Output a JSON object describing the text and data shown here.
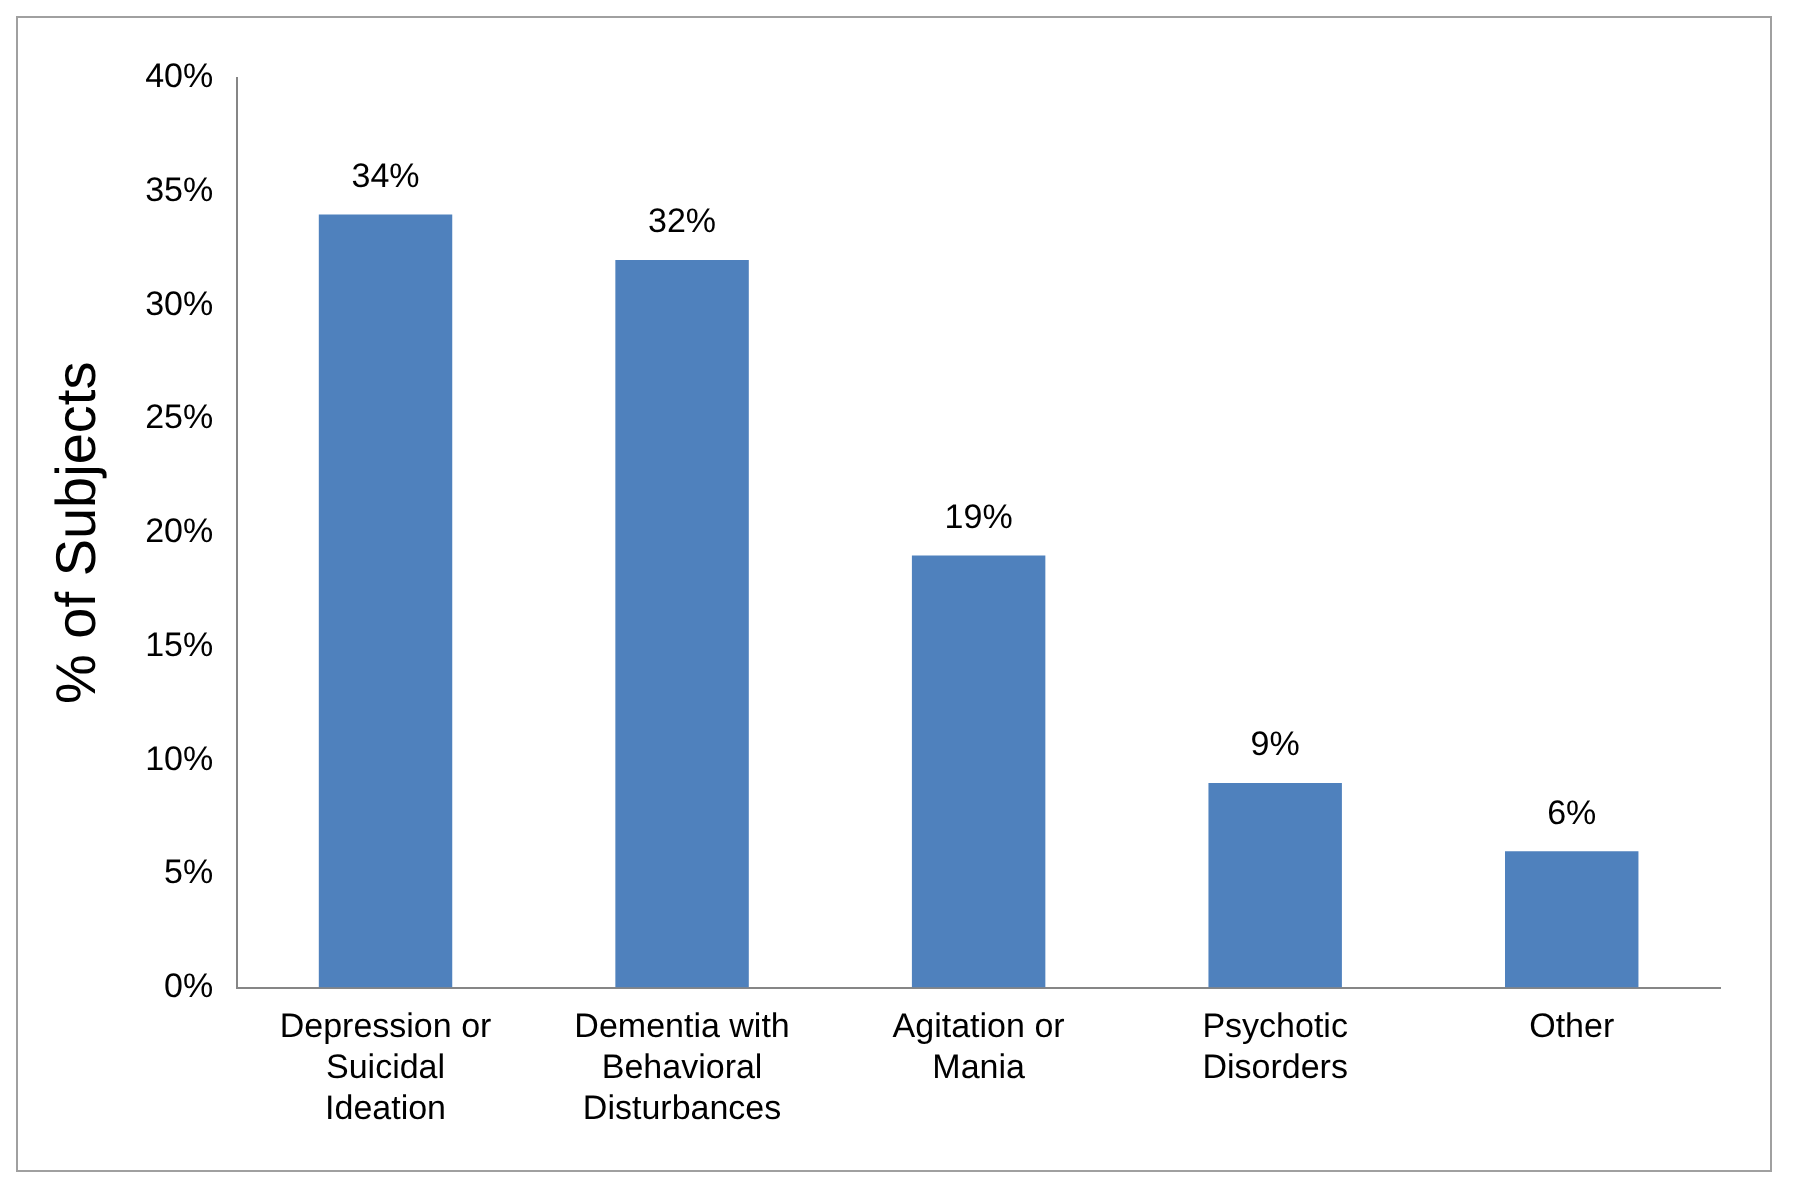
{
  "chart_data": {
    "type": "bar",
    "ylabel": "% of Subjects",
    "categories": [
      "Depression or Suicidal Ideation",
      "Dementia with Behavioral Disturbances",
      "Agitation or Mania",
      "Psychotic Disorders",
      "Other"
    ],
    "values": [
      34,
      32,
      19,
      9,
      6
    ],
    "value_labels": [
      "34%",
      "32%",
      "19%",
      "9%",
      "6%"
    ],
    "color": "#4f81bd",
    "ylim": [
      0,
      40
    ],
    "yticks": [
      {
        "value": 0,
        "label": "0%"
      },
      {
        "value": 5,
        "label": "5%"
      },
      {
        "value": 10,
        "label": "10%"
      },
      {
        "value": 15,
        "label": "15%"
      },
      {
        "value": 20,
        "label": "20%"
      },
      {
        "value": 25,
        "label": "25%"
      },
      {
        "value": 30,
        "label": "30%"
      },
      {
        "value": 35,
        "label": "35%"
      },
      {
        "value": 40,
        "label": "40%"
      }
    ],
    "grid": false,
    "legend": false
  }
}
